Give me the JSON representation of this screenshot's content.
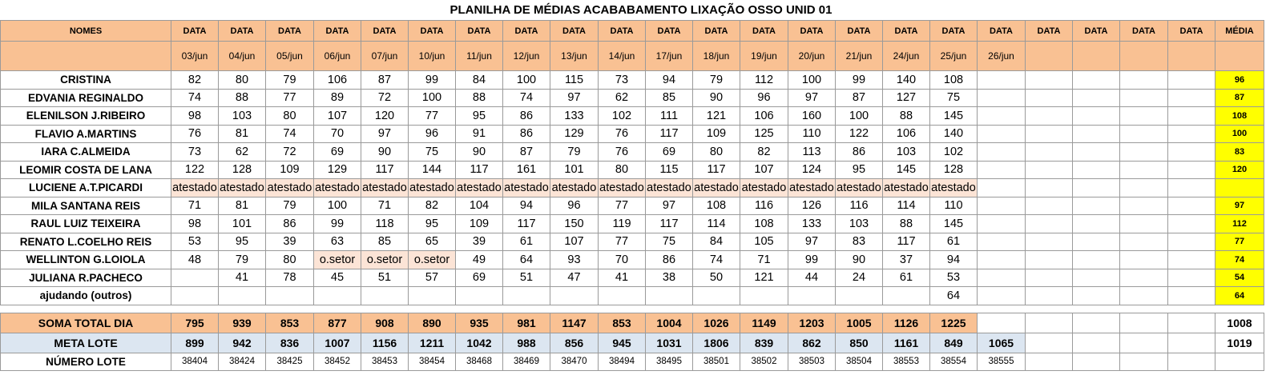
{
  "title": "PLANILHA DE MÉDIAS ACABABAMENTO LIXAÇÃO OSSO UNID 01",
  "header": {
    "names_label": "NOMES",
    "data_label": "DATA",
    "media_label": "MÉDIA",
    "dates": [
      "03/jun",
      "04/jun",
      "05/jun",
      "06/jun",
      "07/jun",
      "10/jun",
      "11/jun",
      "12/jun",
      "13/jun",
      "14/jun",
      "17/jun",
      "18/jun",
      "19/jun",
      "20/jun",
      "21/jun",
      "24/jun",
      "25/jun",
      "26/jun",
      "",
      "",
      "",
      ""
    ]
  },
  "rows": [
    {
      "name": "CRISTINA",
      "values": [
        "82",
        "80",
        "79",
        "106",
        "87",
        "99",
        "84",
        "100",
        "115",
        "73",
        "94",
        "79",
        "112",
        "100",
        "99",
        "140",
        "108",
        "",
        "",
        "",
        "",
        ""
      ],
      "media": "96"
    },
    {
      "name": "EDVANIA REGINALDO",
      "values": [
        "74",
        "88",
        "77",
        "89",
        "72",
        "100",
        "88",
        "74",
        "97",
        "62",
        "85",
        "90",
        "96",
        "97",
        "87",
        "127",
        "75",
        "",
        "",
        "",
        "",
        ""
      ],
      "media": "87"
    },
    {
      "name": "ELENILSON J.RIBEIRO",
      "values": [
        "98",
        "103",
        "80",
        "107",
        "120",
        "77",
        "95",
        "86",
        "133",
        "102",
        "111",
        "121",
        "106",
        "160",
        "100",
        "88",
        "145",
        "",
        "",
        "",
        "",
        ""
      ],
      "media": "108"
    },
    {
      "name": "FLAVIO A.MARTINS",
      "values": [
        "76",
        "81",
        "74",
        "70",
        "97",
        "96",
        "91",
        "86",
        "129",
        "76",
        "117",
        "109",
        "125",
        "110",
        "122",
        "106",
        "140",
        "",
        "",
        "",
        "",
        ""
      ],
      "media": "100"
    },
    {
      "name": "IARA C.ALMEIDA",
      "values": [
        "73",
        "62",
        "72",
        "69",
        "90",
        "75",
        "90",
        "87",
        "79",
        "76",
        "69",
        "80",
        "82",
        "113",
        "86",
        "103",
        "102",
        "",
        "",
        "",
        "",
        ""
      ],
      "media": "83"
    },
    {
      "name": "LEOMIR COSTA DE LANA",
      "values": [
        "122",
        "128",
        "109",
        "129",
        "117",
        "144",
        "117",
        "161",
        "101",
        "80",
        "115",
        "117",
        "107",
        "124",
        "95",
        "145",
        "128",
        "",
        "",
        "",
        "",
        ""
      ],
      "media": "120"
    },
    {
      "name": "LUCIENE A.T.PICARDI",
      "values": [
        "atestado",
        "atestado",
        "atestado",
        "atestado",
        "atestado",
        "atestado",
        "atestado",
        "atestado",
        "atestado",
        "atestado",
        "atestado",
        "atestado",
        "atestado",
        "atestado",
        "atestado",
        "atestado",
        "atestado",
        "",
        "",
        "",
        "",
        ""
      ],
      "media": ""
    },
    {
      "name": "MILA SANTANA REIS",
      "values": [
        "71",
        "81",
        "79",
        "100",
        "71",
        "82",
        "104",
        "94",
        "96",
        "77",
        "97",
        "108",
        "116",
        "126",
        "116",
        "114",
        "110",
        "",
        "",
        "",
        "",
        ""
      ],
      "media": "97"
    },
    {
      "name": "RAUL LUIZ TEIXEIRA",
      "values": [
        "98",
        "101",
        "86",
        "99",
        "118",
        "95",
        "109",
        "117",
        "150",
        "119",
        "117",
        "114",
        "108",
        "133",
        "103",
        "88",
        "145",
        "",
        "",
        "",
        "",
        ""
      ],
      "media": "112"
    },
    {
      "name": "RENATO L.COELHO REIS",
      "values": [
        "53",
        "95",
        "39",
        "63",
        "85",
        "65",
        "39",
        "61",
        "107",
        "77",
        "75",
        "84",
        "105",
        "97",
        "83",
        "117",
        "61",
        "",
        "",
        "",
        "",
        ""
      ],
      "media": "77"
    },
    {
      "name": "WELLINTON G.LOIOLA",
      "values": [
        "48",
        "79",
        "80",
        "o.setor",
        "o.setor",
        "o.setor",
        "49",
        "64",
        "93",
        "70",
        "86",
        "74",
        "71",
        "99",
        "90",
        "37",
        "94",
        "",
        "",
        "",
        "",
        ""
      ],
      "media": "74"
    },
    {
      "name": "JULIANA R.PACHECO",
      "values": [
        "",
        "41",
        "78",
        "45",
        "51",
        "57",
        "69",
        "51",
        "47",
        "41",
        "38",
        "50",
        "121",
        "44",
        "24",
        "61",
        "53",
        "",
        "",
        "",
        "",
        ""
      ],
      "media": "54"
    },
    {
      "name": "ajudando (outros)",
      "values": [
        "",
        "",
        "",
        "",
        "",
        "",
        "",
        "",
        "",
        "",
        "",
        "",
        "",
        "",
        "",
        "",
        "64",
        "",
        "",
        "",
        "",
        ""
      ],
      "media": "64"
    }
  ],
  "soma": {
    "label": "SOMA TOTAL DIA",
    "values": [
      "795",
      "939",
      "853",
      "877",
      "908",
      "890",
      "935",
      "981",
      "1147",
      "853",
      "1004",
      "1026",
      "1149",
      "1203",
      "1005",
      "1126",
      "1225",
      "",
      "",
      "",
      "",
      ""
    ],
    "media": "1008"
  },
  "meta": {
    "label": "META LOTE",
    "values": [
      "899",
      "942",
      "836",
      "1007",
      "1156",
      "1211",
      "1042",
      "988",
      "856",
      "945",
      "1031",
      "1806",
      "839",
      "862",
      "850",
      "1161",
      "849",
      "1065",
      "",
      "",
      "",
      ""
    ],
    "media": "1019"
  },
  "numero_lote": {
    "label": "NÚMERO LOTE",
    "values": [
      "38404",
      "38424",
      "38425",
      "38452",
      "38453",
      "38454",
      "38468",
      "38469",
      "38470",
      "38494",
      "38495",
      "38501",
      "38502",
      "38503",
      "38504",
      "38553",
      "38554",
      "38555",
      "",
      "",
      "",
      ""
    ],
    "media": ""
  },
  "colors": {
    "header": "#f9c193",
    "average": "#ffff00",
    "note": "#fce4d6",
    "meta": "#dce6f1"
  }
}
